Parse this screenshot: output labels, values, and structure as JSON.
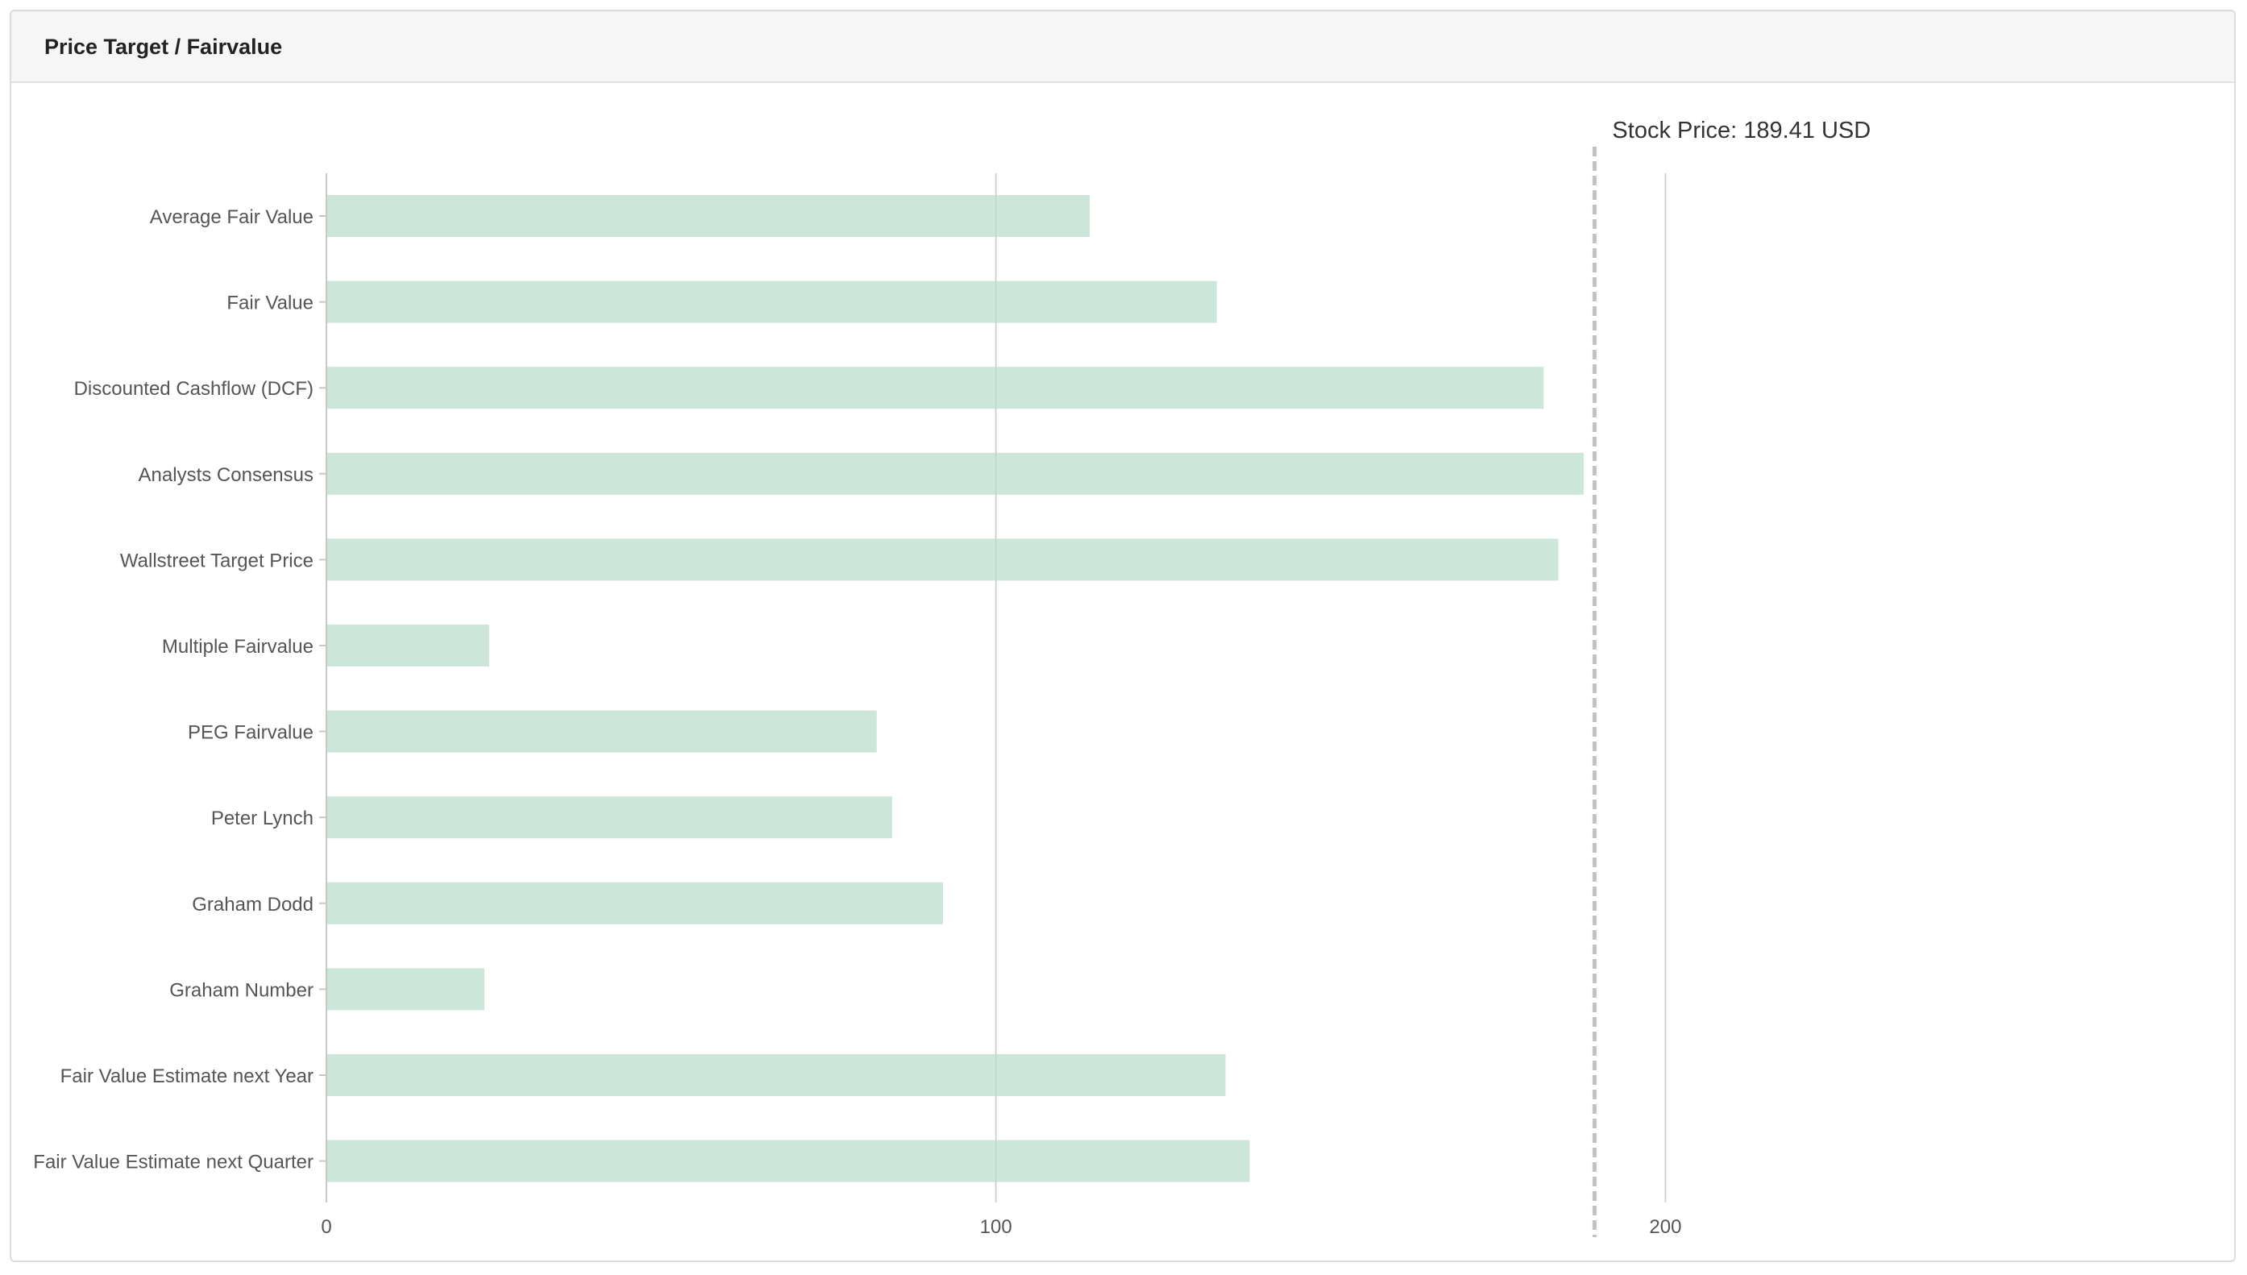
{
  "card": {
    "title": "Price Target / Fairvalue"
  },
  "chart_data": {
    "type": "bar",
    "orientation": "horizontal",
    "title": "",
    "xlabel": "",
    "ylabel": "",
    "categories": [
      "Average Fair Value",
      "Fair Value ",
      "Discounted Cashflow (DCF)",
      "Analysts Consensus",
      "Wallstreet Target Price",
      "Multiple Fairvalue",
      "PEG Fairvalue",
      "Peter Lynch",
      "Graham Dodd",
      "Graham Number",
      "Fair Value Estimate next Year",
      "Fair Value Estimate next Quarter"
    ],
    "values": [
      114,
      133,
      181.8,
      187.8,
      184,
      24.3,
      82.2,
      84.5,
      92.1,
      23.6,
      134.3,
      137.9
    ],
    "xlim": [
      0,
      285
    ],
    "xticks": [
      0,
      100,
      200
    ],
    "xtick_labels": [
      "0",
      "100",
      "200"
    ],
    "grid": true,
    "bar_color": "#cce7da",
    "reference_line": {
      "value": 189.41,
      "label": "Stock Price: 189.41 USD",
      "style": "dashed",
      "color": "#c2c2c2"
    }
  }
}
